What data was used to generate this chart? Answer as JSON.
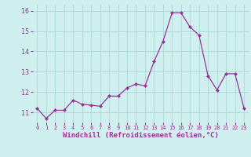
{
  "x": [
    0,
    1,
    2,
    3,
    4,
    5,
    6,
    7,
    8,
    9,
    10,
    11,
    12,
    13,
    14,
    15,
    16,
    17,
    18,
    19,
    20,
    21,
    22,
    23
  ],
  "y": [
    11.2,
    10.7,
    11.1,
    11.1,
    11.6,
    11.4,
    11.35,
    11.3,
    11.8,
    11.8,
    12.2,
    12.4,
    12.3,
    13.5,
    14.5,
    15.9,
    15.9,
    15.2,
    14.8,
    12.8,
    12.1,
    12.9,
    12.9,
    11.2
  ],
  "line_color": "#993399",
  "marker": "D",
  "marker_size": 2.0,
  "bg_color": "#d0efef",
  "grid_color": "#aad8d8",
  "xlabel": "Windchill (Refroidissement éolien,°C)",
  "xlabel_color": "#993399",
  "ylim": [
    10.5,
    16.3
  ],
  "yticks": [
    11,
    12,
    13,
    14,
    15,
    16
  ],
  "fig_bg": "#d0efef",
  "tick_label_color": "#993399",
  "xtick_fontsize": 5.0,
  "ytick_fontsize": 6.0,
  "xlabel_fontsize": 6.5
}
